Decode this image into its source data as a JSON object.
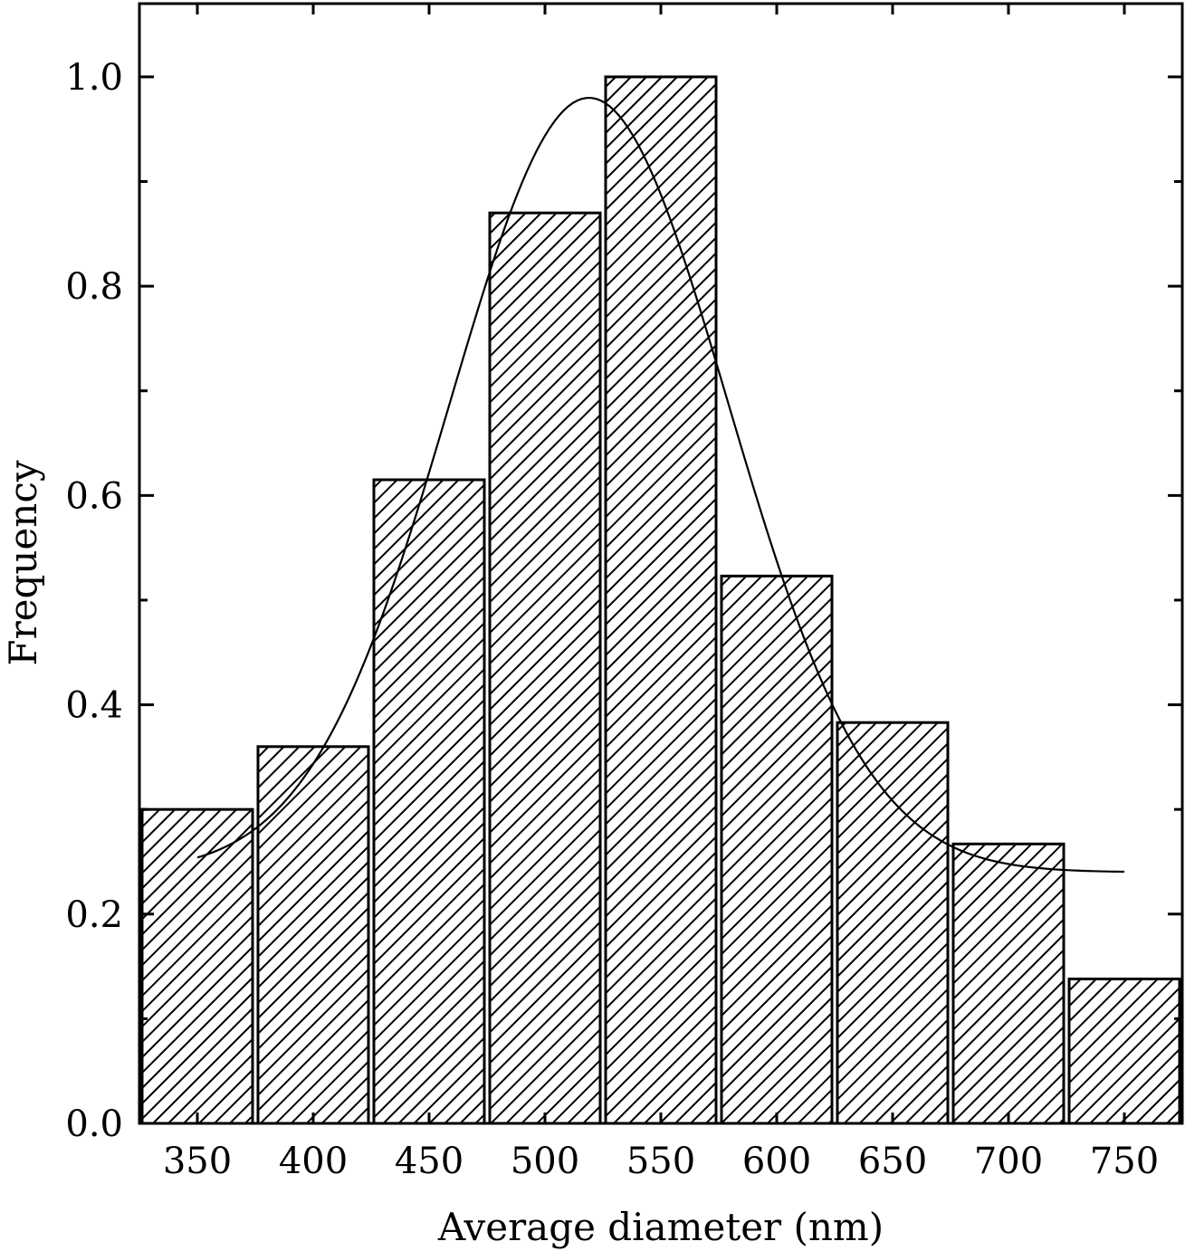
{
  "chart_data": {
    "type": "bar",
    "xlabel": "Average diameter (nm)",
    "ylabel": "Frequency",
    "xlim": [
      325,
      775
    ],
    "ylim": [
      0.0,
      1.07
    ],
    "bin_width": 50,
    "bins": [
      {
        "center": 350,
        "value": 0.3
      },
      {
        "center": 400,
        "value": 0.36
      },
      {
        "center": 450,
        "value": 0.615
      },
      {
        "center": 500,
        "value": 0.87
      },
      {
        "center": 550,
        "value": 1.0
      },
      {
        "center": 600,
        "value": 0.523
      },
      {
        "center": 650,
        "value": 0.383
      },
      {
        "center": 700,
        "value": 0.267
      },
      {
        "center": 750,
        "value": 0.138
      }
    ],
    "x_ticks": [
      "350",
      "400",
      "450",
      "500",
      "550",
      "600",
      "650",
      "700",
      "750"
    ],
    "x_tick_values": [
      350,
      400,
      450,
      500,
      550,
      600,
      650,
      700,
      750
    ],
    "y_ticks": [
      "0.0",
      "0.2",
      "0.4",
      "0.6",
      "0.8",
      "1.0"
    ],
    "y_tick_values": [
      0.0,
      0.2,
      0.4,
      0.6,
      0.8,
      1.0
    ],
    "fit_curve": {
      "type": "gaussian",
      "baseline": 0.24,
      "amplitude": 0.74,
      "center": 519,
      "sigma": 60,
      "x_range": [
        350,
        750
      ]
    },
    "bar_fill": "hatched",
    "grid": false,
    "legend": false
  }
}
